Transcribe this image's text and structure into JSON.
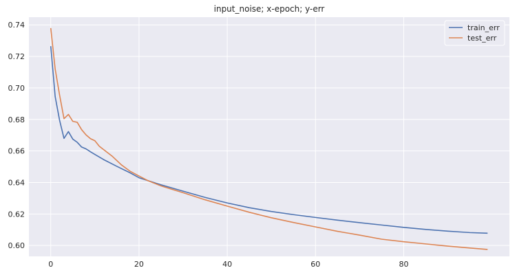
{
  "chart_data": {
    "type": "line",
    "title": "input_noise; x-epoch; y-err",
    "xlabel": "",
    "ylabel": "",
    "xlim": [
      -4.95,
      103.95
    ],
    "ylim": [
      0.5931,
      0.7449
    ],
    "xticks": [
      0,
      20,
      40,
      60,
      80
    ],
    "yticks": [
      0.6,
      0.62,
      0.64,
      0.66,
      0.68,
      0.7,
      0.72,
      0.74
    ],
    "ytick_labels": [
      "0.60",
      "0.62",
      "0.64",
      "0.66",
      "0.68",
      "0.70",
      "0.72",
      "0.74"
    ],
    "grid": true,
    "legend_position": "top-right",
    "background": "#EAEAF2",
    "series": [
      {
        "name": "train_err",
        "color": "#4C72B0",
        "points": [
          [
            0,
            0.7265
          ],
          [
            1,
            0.6945
          ],
          [
            2,
            0.6795
          ],
          [
            3,
            0.668
          ],
          [
            4,
            0.6723
          ],
          [
            5,
            0.6675
          ],
          [
            6,
            0.6655
          ],
          [
            7,
            0.6625
          ],
          [
            8,
            0.6613
          ],
          [
            9,
            0.6595
          ],
          [
            10,
            0.6578
          ],
          [
            12,
            0.6545
          ],
          [
            15,
            0.6502
          ],
          [
            18,
            0.6461
          ],
          [
            20,
            0.643
          ],
          [
            25,
            0.6385
          ],
          [
            30,
            0.6345
          ],
          [
            35,
            0.6305
          ],
          [
            40,
            0.627
          ],
          [
            45,
            0.624
          ],
          [
            50,
            0.6216
          ],
          [
            55,
            0.6196
          ],
          [
            60,
            0.6178
          ],
          [
            65,
            0.6161
          ],
          [
            70,
            0.6145
          ],
          [
            75,
            0.613
          ],
          [
            80,
            0.6115
          ],
          [
            85,
            0.6102
          ],
          [
            90,
            0.6091
          ],
          [
            95,
            0.6082
          ],
          [
            99,
            0.6078
          ]
        ]
      },
      {
        "name": "test_err",
        "color": "#DD8452",
        "points": [
          [
            0,
            0.738
          ],
          [
            1,
            0.712
          ],
          [
            2,
            0.6955
          ],
          [
            3,
            0.6805
          ],
          [
            4,
            0.6832
          ],
          [
            5,
            0.6788
          ],
          [
            6,
            0.6782
          ],
          [
            7,
            0.6735
          ],
          [
            8,
            0.6702
          ],
          [
            9,
            0.6678
          ],
          [
            10,
            0.6665
          ],
          [
            11,
            0.663
          ],
          [
            12,
            0.6608
          ],
          [
            14,
            0.6565
          ],
          [
            16,
            0.6512
          ],
          [
            18,
            0.6471
          ],
          [
            20,
            0.6441
          ],
          [
            22,
            0.6412
          ],
          [
            25,
            0.6378
          ],
          [
            30,
            0.6335
          ],
          [
            35,
            0.629
          ],
          [
            40,
            0.625
          ],
          [
            45,
            0.6211
          ],
          [
            50,
            0.6176
          ],
          [
            55,
            0.6146
          ],
          [
            60,
            0.6118
          ],
          [
            65,
            0.609
          ],
          [
            70,
            0.6066
          ],
          [
            75,
            0.604
          ],
          [
            80,
            0.6024
          ],
          [
            85,
            0.601
          ],
          [
            90,
            0.5996
          ],
          [
            95,
            0.5984
          ],
          [
            99,
            0.5975
          ]
        ]
      }
    ]
  }
}
